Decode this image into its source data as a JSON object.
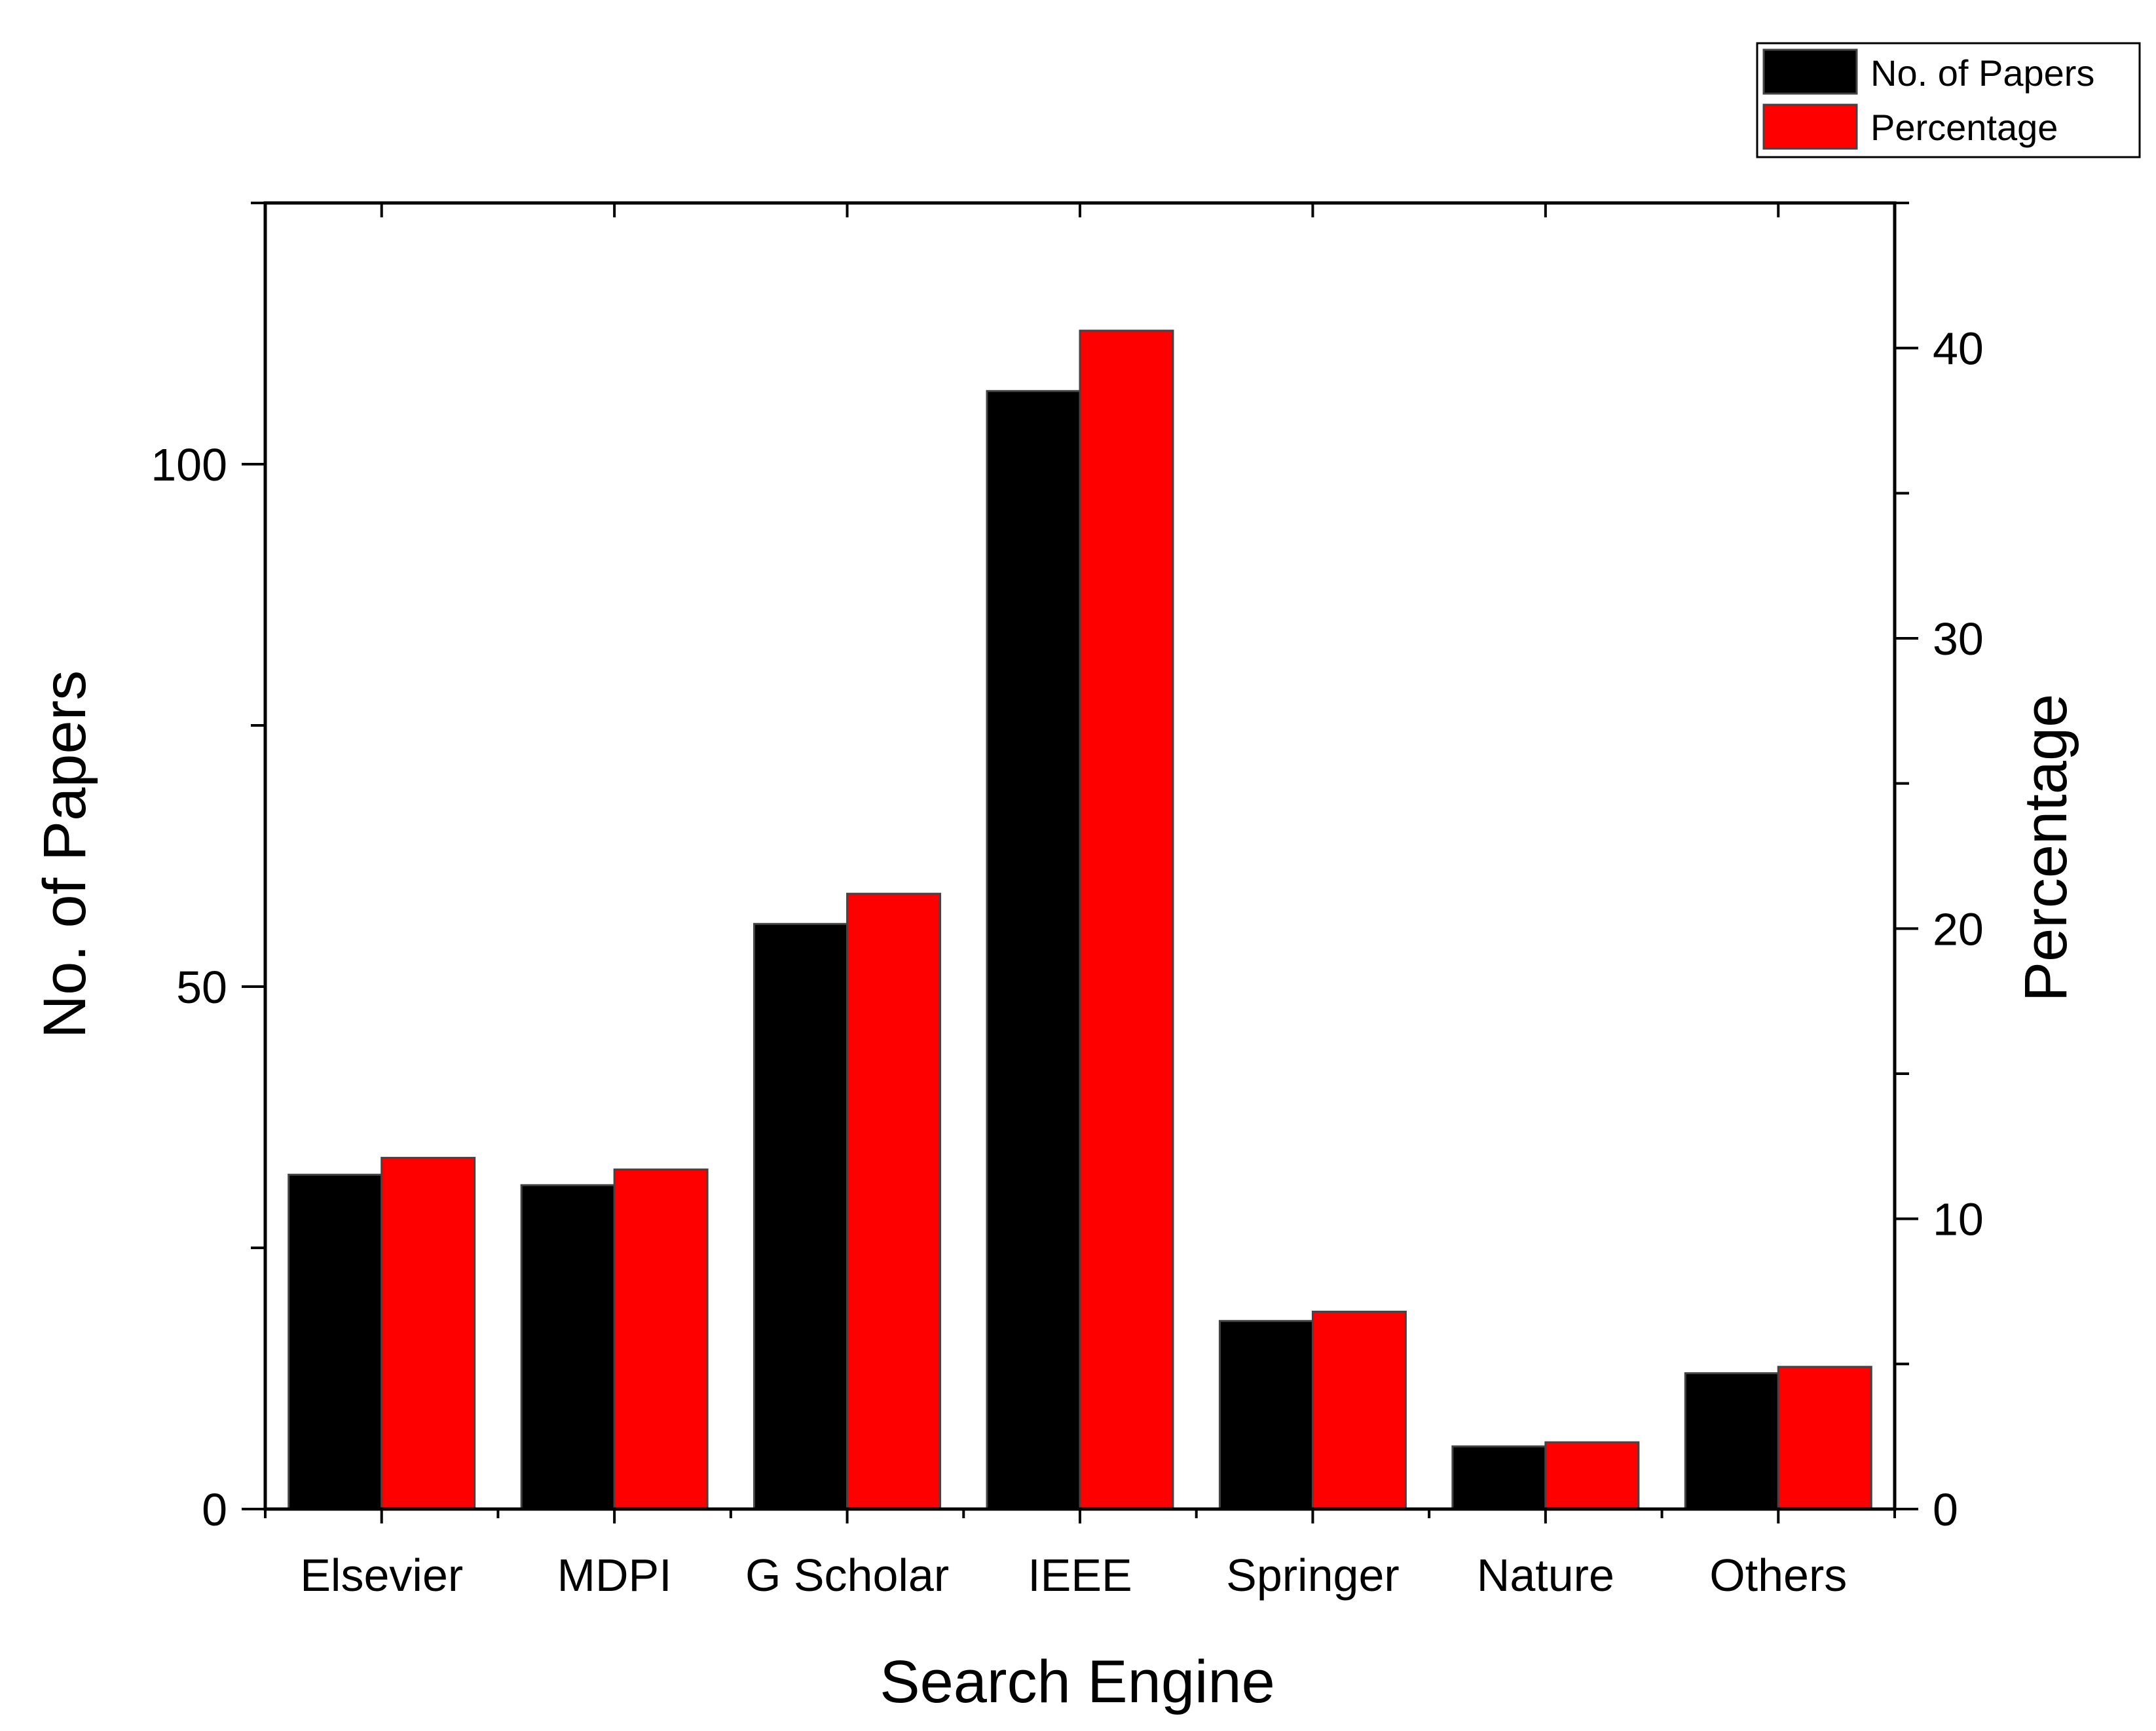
{
  "chart_data": {
    "type": "bar",
    "xlabel": "Search Engine",
    "ylabel_left": "No. of Papers",
    "ylabel_right": "Percentage",
    "categories": [
      "Elsevier",
      "MDPI",
      "G Scholar",
      "IEEE",
      "Springer",
      "Nature",
      "Others"
    ],
    "series": [
      {
        "name": "No. of Papers",
        "axis": "left",
        "color": "#000000",
        "values": [
          32,
          31,
          56,
          107,
          18,
          6,
          13
        ]
      },
      {
        "name": "Percentage",
        "axis": "right",
        "color": "#ff0000",
        "values": [
          12.1,
          11.7,
          21.2,
          40.6,
          6.8,
          2.3,
          4.9
        ]
      }
    ],
    "ylim_left": [
      0,
      125
    ],
    "ylim_right": [
      0,
      45
    ],
    "yticks_left": [
      0,
      50,
      100
    ],
    "yticks_left_labels": [
      "0",
      "50",
      "100"
    ],
    "yticks_right": [
      0,
      10,
      20,
      30,
      40
    ],
    "yticks_right_labels": [
      "0",
      "10",
      "20",
      "30",
      "40"
    ],
    "grid": false,
    "legend": {
      "position": "top-right",
      "entries": [
        "No. of Papers",
        "Percentage"
      ]
    }
  }
}
